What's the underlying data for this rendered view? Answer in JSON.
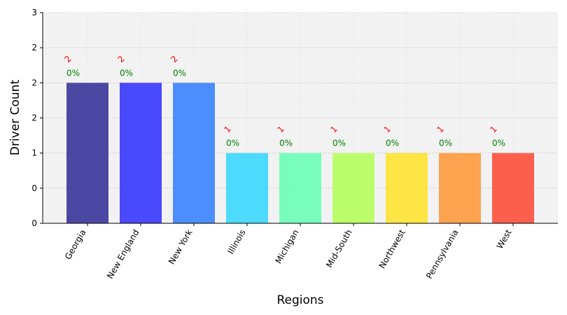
{
  "chart_data": {
    "type": "bar",
    "categories": [
      "Georgia",
      "New England",
      "New York",
      "Illinois",
      "Michigan",
      "Mid-South",
      "Northwest",
      "Pennsylvania",
      "West"
    ],
    "values": [
      2,
      2,
      2,
      1,
      1,
      1,
      1,
      1,
      1
    ],
    "count_labels": [
      "2",
      "2",
      "2",
      "1",
      "1",
      "1",
      "1",
      "1",
      "1"
    ],
    "percent_labels": [
      "0%",
      "0%",
      "0%",
      "0%",
      "0%",
      "0%",
      "0%",
      "0%",
      "0%"
    ],
    "colors": [
      "#2e2a96",
      "#2b2bff",
      "#2f7dff",
      "#2fd6ff",
      "#63ffb4",
      "#b3ff55",
      "#ffe326",
      "#ff9533",
      "#ff4530"
    ],
    "count_label_color": "#ff0000",
    "percent_label_color": "#008000",
    "plot_background": "#f2f2f2",
    "title": "",
    "xlabel": "Regions",
    "ylabel": "Driver Count",
    "ylim": [
      0,
      3
    ],
    "yticks": [
      0,
      0.5,
      1,
      1.5,
      2,
      2.5,
      3
    ],
    "ytick_labels": [
      "0",
      "0",
      "1",
      "2",
      "2",
      "2",
      "3"
    ],
    "grid": true
  }
}
